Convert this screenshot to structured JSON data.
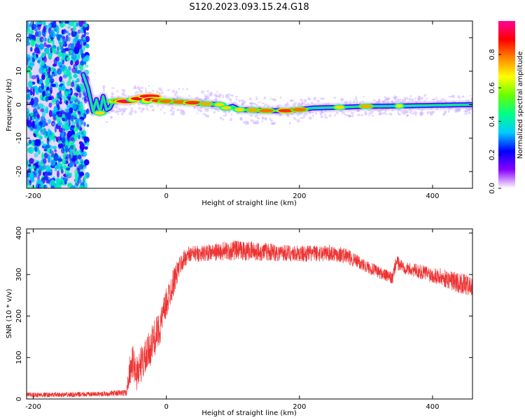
{
  "title": "S120.2023.093.15.24.G18",
  "colors": {
    "snr_line": "#ee3333",
    "spectrogram_scatter": "#7b1fe0",
    "background": "#ffffff"
  },
  "colorbar": {
    "label": "Normalized spectral amplitude",
    "range": [
      0,
      1
    ],
    "ticks": [
      "0.0",
      "0.2",
      "0.4",
      "0.6",
      "0.8"
    ],
    "tick_values": [
      0.0,
      0.2,
      0.4,
      0.6,
      0.8
    ],
    "colormap": [
      "#ffffff",
      "#8800ff",
      "#0000ff",
      "#00ccff",
      "#00ff88",
      "#66ff00",
      "#ffff00",
      "#ff8800",
      "#ff0000",
      "#ff0099"
    ]
  },
  "chart_data": [
    {
      "type": "heatmap",
      "title": "",
      "xlabel": "Height of straight line (km)",
      "ylabel": "Frequency (Hz)",
      "xlim": [
        -210,
        460
      ],
      "ylim": [
        -25,
        25
      ],
      "x_ticks": [
        -200,
        0,
        200,
        400
      ],
      "y_ticks": [
        -20,
        -10,
        0,
        10,
        20
      ],
      "grid": false,
      "ridge": {
        "x": [
          -125,
          -118,
          -113,
          -110,
          -105,
          -100,
          -95,
          -90,
          -85,
          -80,
          -70,
          -60,
          -50,
          -40,
          -30,
          -25,
          -20,
          -10,
          0,
          20,
          40,
          60,
          80,
          90,
          100,
          110,
          130,
          150,
          180,
          200,
          220,
          260,
          300,
          350,
          400,
          460
        ],
        "y": [
          9.0,
          5.0,
          0.5,
          -2.0,
          1.5,
          -2.5,
          2.5,
          -1.5,
          -1.0,
          1.0,
          1.2,
          1.0,
          1.5,
          1.8,
          1.0,
          2.5,
          1.5,
          1.2,
          1.0,
          0.8,
          0.6,
          0.2,
          0.0,
          -1.0,
          -0.5,
          -1.5,
          -1.6,
          -1.8,
          -1.8,
          -1.5,
          -1.0,
          -0.8,
          -0.5,
          -0.4,
          -0.2,
          0.0
        ],
        "amplitude": [
          0.3,
          0.5,
          0.6,
          0.6,
          0.6,
          0.7,
          0.6,
          0.6,
          0.6,
          0.7,
          0.8,
          0.95,
          0.7,
          0.9,
          0.7,
          0.95,
          0.9,
          0.85,
          0.8,
          0.8,
          0.85,
          0.75,
          0.7,
          0.7,
          0.6,
          0.7,
          0.75,
          0.8,
          0.85,
          0.8,
          0.6,
          0.7,
          0.75,
          0.65,
          0.6,
          0.6
        ]
      },
      "noise_region": {
        "x": [
          -210,
          -122
        ],
        "y": [
          -25,
          25
        ],
        "amplitude": [
          0.15,
          0.45
        ]
      }
    },
    {
      "type": "line",
      "title": "",
      "xlabel": "Height of straight line (km)",
      "ylabel": "SNR (10 * v/v)",
      "xlim": [
        -210,
        460
      ],
      "ylim": [
        0,
        410
      ],
      "x_ticks": [
        -200,
        0,
        200,
        400
      ],
      "y_ticks": [
        0,
        100,
        200,
        300,
        400
      ],
      "grid": false,
      "series": [
        {
          "x": [
            -210,
            -150,
            -100,
            -60,
            -55,
            -50,
            -45,
            -40,
            -30,
            -20,
            -10,
            0,
            10,
            20,
            30,
            40,
            60,
            80,
            100,
            150,
            200,
            250,
            270,
            300,
            340,
            345,
            360,
            400,
            440,
            460
          ],
          "y": [
            10,
            10,
            12,
            15,
            70,
            90,
            60,
            80,
            100,
            140,
            170,
            230,
            280,
            320,
            345,
            350,
            352,
            355,
            358,
            355,
            350,
            352,
            345,
            320,
            290,
            330,
            315,
            300,
            280,
            270
          ],
          "spread": [
            6,
            6,
            6,
            8,
            35,
            40,
            45,
            45,
            45,
            45,
            40,
            40,
            35,
            25,
            22,
            20,
            20,
            22,
            25,
            22,
            20,
            20,
            20,
            15,
            15,
            18,
            15,
            20,
            25,
            25
          ]
        }
      ]
    }
  ]
}
